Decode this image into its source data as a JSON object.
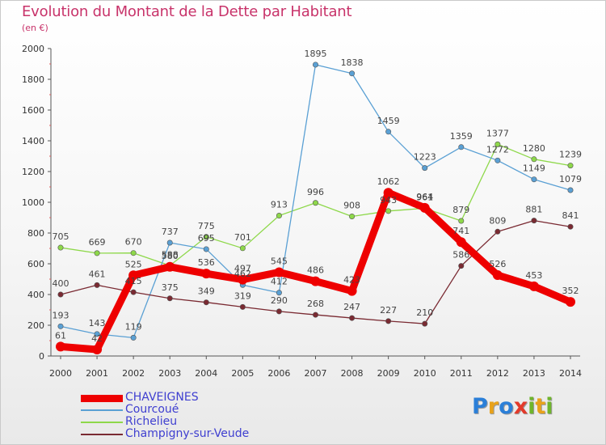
{
  "title": "Evolution du Montant de la Dette par Habitant",
  "subtitle": "(en €)",
  "logo": {
    "text": "Proxiti",
    "letters": [
      {
        "ch": "P",
        "color": "#2b7fd8"
      },
      {
        "ch": "r",
        "color": "#e8a21b"
      },
      {
        "ch": "o",
        "color": "#2b7fd8"
      },
      {
        "ch": "x",
        "color": "#e33a2b"
      },
      {
        "ch": "i",
        "color": "#6fb52c"
      },
      {
        "ch": "t",
        "color": "#e8a21b"
      },
      {
        "ch": "i",
        "color": "#6fb52c"
      }
    ]
  },
  "chart_data": {
    "type": "line",
    "title": "Evolution du Montant de la Dette par Habitant",
    "subtitle": "(en €)",
    "x": [
      "2000",
      "2001",
      "2002",
      "2003",
      "2004",
      "2005",
      "2006",
      "2007",
      "2008",
      "2009",
      "2010",
      "2011",
      "2012",
      "2013",
      "2014"
    ],
    "ylim": [
      0,
      2000
    ],
    "yticks": [
      "0",
      "200",
      "400",
      "600",
      "800",
      "1000",
      "1200",
      "1400",
      "1600",
      "1800",
      "2000"
    ],
    "grid": false,
    "legend_position": "bottom-left",
    "series": [
      {
        "name": "Richelieu",
        "color": "#8ed84a",
        "values": [
          705,
          669,
          670,
          588,
          775,
          701,
          913,
          996,
          908,
          943,
          961,
          879,
          1377,
          1280,
          1239
        ],
        "labels": [
          "705",
          "669",
          "670",
          "588",
          "775",
          "701",
          "913",
          "996",
          "908",
          "943",
          "961",
          "879",
          "1377",
          "1280",
          "1239"
        ]
      },
      {
        "name": "Courcoué",
        "color": "#5aa0d4",
        "values": [
          193,
          143,
          119,
          737,
          695,
          462,
          412,
          1895,
          1838,
          1459,
          1223,
          1359,
          1272,
          1149,
          1079
        ],
        "labels": [
          "193",
          "143",
          "119",
          "737",
          "695",
          "462",
          "412",
          "1895",
          "1838",
          "1459",
          "1223",
          "1359",
          "1272",
          "1149",
          "1079"
        ]
      },
      {
        "name": "Champigny-sur-Veude",
        "color": "#7a2a32",
        "values": [
          400,
          461,
          415,
          375,
          349,
          319,
          290,
          268,
          247,
          227,
          210,
          586,
          809,
          881,
          841
        ],
        "labels": [
          "400",
          "461",
          "415",
          "375",
          "349",
          "319",
          "290",
          "268",
          "247",
          "227",
          "210",
          "586",
          "809",
          "881",
          "841"
        ]
      },
      {
        "name": "CHAVEIGNES",
        "color": "#ee0000",
        "values": [
          61,
          42,
          525,
          580,
          536,
          497,
          545,
          486,
          423,
          1062,
          964,
          741,
          526,
          453,
          352
        ],
        "labels": [
          "61",
          "42",
          "525",
          "580",
          "536",
          "497",
          "545",
          "486",
          "423",
          "1062",
          "964",
          "741",
          "526",
          "453",
          "352"
        ]
      }
    ],
    "legend_order": [
      "CHAVEIGNES",
      "Courcoué",
      "Richelieu",
      "Champigny-sur-Veude"
    ]
  }
}
